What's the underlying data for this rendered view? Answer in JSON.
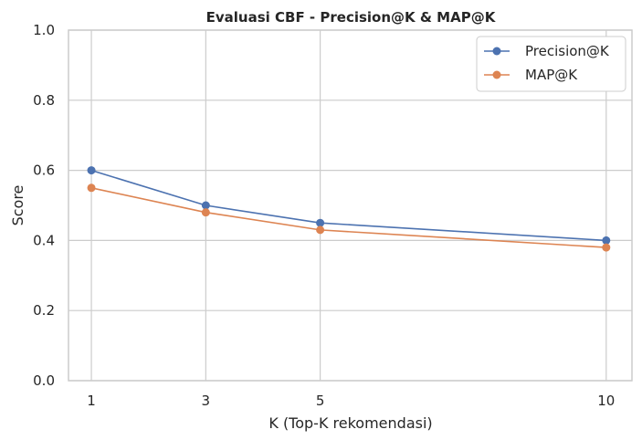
{
  "chart_data": {
    "type": "line",
    "title": "Evaluasi CBF - Precision@K & MAP@K",
    "xlabel": "K (Top-K rekomendasi)",
    "ylabel": "Score",
    "x": [
      1,
      3,
      5,
      10
    ],
    "x_ticks": [
      "1",
      "3",
      "5",
      "10"
    ],
    "xlim": [
      0.6,
      10.45
    ],
    "ylim": [
      0,
      1
    ],
    "y_ticks": [
      "0.0",
      "0.2",
      "0.4",
      "0.6",
      "0.8",
      "1.0"
    ],
    "grid": true,
    "legend_position": "top-right",
    "series": [
      {
        "name": "Precision@K",
        "values": [
          0.6,
          0.5,
          0.45,
          0.4
        ],
        "color": "#4c72b0"
      },
      {
        "name": "MAP@K",
        "values": [
          0.55,
          0.48,
          0.43,
          0.38
        ],
        "color": "#dd8452"
      }
    ]
  }
}
